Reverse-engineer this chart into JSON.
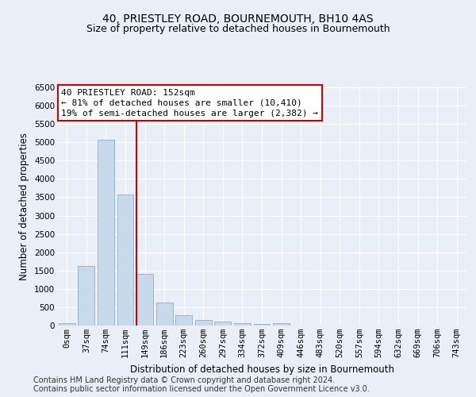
{
  "title": "40, PRIESTLEY ROAD, BOURNEMOUTH, BH10 4AS",
  "subtitle": "Size of property relative to detached houses in Bournemouth",
  "xlabel": "Distribution of detached houses by size in Bournemouth",
  "ylabel": "Number of detached properties",
  "footer1": "Contains HM Land Registry data © Crown copyright and database right 2024.",
  "footer2": "Contains public sector information licensed under the Open Government Licence v3.0.",
  "annotation_line1": "40 PRIESTLEY ROAD: 152sqm",
  "annotation_line2": "← 81% of detached houses are smaller (10,410)",
  "annotation_line3": "19% of semi-detached houses are larger (2,382) →",
  "bar_color": "#c9d9ec",
  "bar_edge_color": "#7aa5c8",
  "vline_color": "#cc0000",
  "categories": [
    "0sqm",
    "37sqm",
    "74sqm",
    "111sqm",
    "149sqm",
    "186sqm",
    "223sqm",
    "260sqm",
    "297sqm",
    "334sqm",
    "372sqm",
    "409sqm",
    "446sqm",
    "483sqm",
    "520sqm",
    "557sqm",
    "594sqm",
    "632sqm",
    "669sqm",
    "706sqm",
    "743sqm"
  ],
  "values": [
    75,
    1620,
    5060,
    3580,
    1410,
    620,
    290,
    145,
    100,
    75,
    50,
    75,
    0,
    0,
    0,
    0,
    0,
    0,
    0,
    0,
    0
  ],
  "ylim": [
    0,
    6500
  ],
  "yticks": [
    0,
    500,
    1000,
    1500,
    2000,
    2500,
    3000,
    3500,
    4000,
    4500,
    5000,
    5500,
    6000,
    6500
  ],
  "bg_color": "#eaeff7",
  "plot_bg_color": "#eaeff7",
  "grid_color": "#ffffff",
  "title_fontsize": 10,
  "subtitle_fontsize": 9,
  "axis_label_fontsize": 8.5,
  "tick_fontsize": 7.5,
  "footer_fontsize": 7,
  "annotation_fontsize": 8
}
